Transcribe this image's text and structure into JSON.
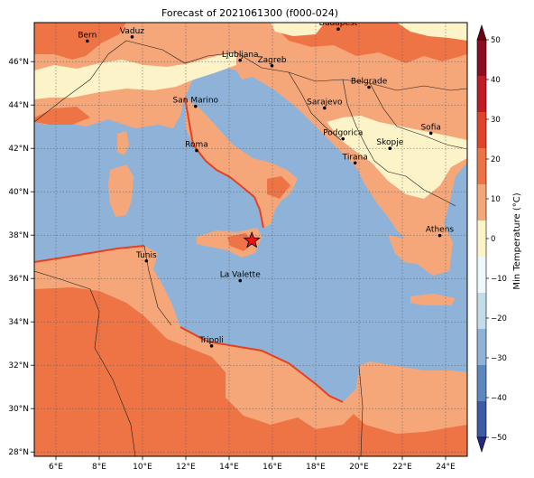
{
  "title": "Forecast of 2021061300 (f000-024)",
  "map": {
    "lon_range": [
      5,
      25
    ],
    "lat_range": [
      27.8,
      47.8
    ],
    "lon_ticks": [
      6,
      8,
      10,
      12,
      14,
      16,
      18,
      20,
      22,
      24
    ],
    "lat_ticks": [
      28,
      30,
      32,
      34,
      36,
      38,
      40,
      42,
      44,
      46
    ],
    "grid": true,
    "colors": {
      "sea": "#8fb3d8",
      "land_15_20": "#f6a77a",
      "land_20_25": "#ee7446",
      "land_10_15": "#fdf3c8",
      "coastline": "#e8401e",
      "border": "#1a1a1a"
    },
    "cities": [
      {
        "name": "Bern",
        "lon": 7.45,
        "lat": 46.95
      },
      {
        "name": "Vaduz",
        "lon": 9.52,
        "lat": 47.14
      },
      {
        "name": "Budapest",
        "lon": 19.04,
        "lat": 47.5
      },
      {
        "name": "Ljubljana",
        "lon": 14.51,
        "lat": 46.06
      },
      {
        "name": "Zagreb",
        "lon": 15.98,
        "lat": 45.81
      },
      {
        "name": "Belgrade",
        "lon": 20.46,
        "lat": 44.82
      },
      {
        "name": "San Marino",
        "lon": 12.45,
        "lat": 43.94
      },
      {
        "name": "Sarajevo",
        "lon": 18.41,
        "lat": 43.86
      },
      {
        "name": "Sofia",
        "lon": 23.32,
        "lat": 42.7
      },
      {
        "name": "Roma",
        "lon": 12.5,
        "lat": 41.9
      },
      {
        "name": "Podgorica",
        "lon": 19.26,
        "lat": 42.44
      },
      {
        "name": "Skopje",
        "lon": 21.43,
        "lat": 42.0
      },
      {
        "name": "Tirana",
        "lon": 19.82,
        "lat": 41.33
      },
      {
        "name": "Athens",
        "lon": 23.73,
        "lat": 37.98
      },
      {
        "name": "Tunis",
        "lon": 10.18,
        "lat": 36.81
      },
      {
        "name": "La Valette",
        "lon": 14.51,
        "lat": 35.9
      },
      {
        "name": "Tripoli",
        "lon": 13.19,
        "lat": 32.89
      }
    ],
    "marker": {
      "type": "star",
      "lon": 15.05,
      "lat": 37.75,
      "color": "#e8161b"
    }
  },
  "colorbar": {
    "label": "Min Temperature (°C)",
    "min": -50,
    "max": 50,
    "ticks": [
      -50,
      -40,
      -30,
      -20,
      -10,
      0,
      10,
      20,
      30,
      40,
      50
    ],
    "colors": [
      "#26277f",
      "#3c5aa6",
      "#5a88bf",
      "#8fb3d8",
      "#c3dcea",
      "#eef8fb",
      "#fdf3c8",
      "#f6a77a",
      "#ee7446",
      "#e3422b",
      "#c21a26",
      "#8e0c20",
      "#6d0016"
    ]
  }
}
